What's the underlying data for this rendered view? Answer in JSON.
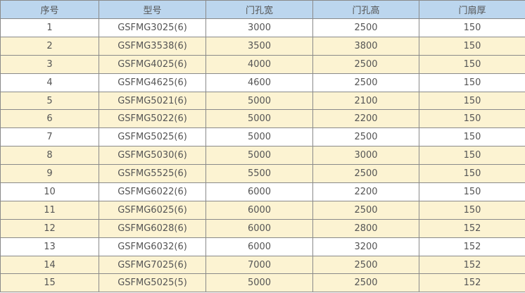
{
  "table": {
    "headers": [
      "序号",
      "型号",
      "门孔宽",
      "门孔高",
      "门扇厚"
    ],
    "colors": {
      "header_bg": "#bcd6ee",
      "highlight_row_bg": "#fcf3d2",
      "plain_row_bg": "#ffffff"
    },
    "rows": [
      {
        "cells": [
          "1",
          "GSFMG3025(6)",
          "3000",
          "2500",
          "150"
        ],
        "highlight": false
      },
      {
        "cells": [
          "2",
          "GSFMG3538(6)",
          "3500",
          "3800",
          "150"
        ],
        "highlight": true
      },
      {
        "cells": [
          "3",
          "GSFMG4025(6)",
          "4000",
          "2500",
          "150"
        ],
        "highlight": true
      },
      {
        "cells": [
          "4",
          "GSFMG4625(6)",
          "4600",
          "2500",
          "150"
        ],
        "highlight": false
      },
      {
        "cells": [
          "5",
          "GSFMG5021(6)",
          "5000",
          "2100",
          "150"
        ],
        "highlight": true
      },
      {
        "cells": [
          "6",
          "GSFMG5022(6)",
          "5000",
          "2200",
          "150"
        ],
        "highlight": true
      },
      {
        "cells": [
          "7",
          "GSFMG5025(6)",
          "5000",
          "2500",
          "150"
        ],
        "highlight": false
      },
      {
        "cells": [
          "8",
          "GSFMG5030(6)",
          "5000",
          "3000",
          "150"
        ],
        "highlight": true
      },
      {
        "cells": [
          "9",
          "GSFMG5525(6)",
          "5500",
          "2500",
          "150"
        ],
        "highlight": true
      },
      {
        "cells": [
          "10",
          "GSFMG6022(6)",
          "6000",
          "2200",
          "150"
        ],
        "highlight": false
      },
      {
        "cells": [
          "11",
          "GSFMG6025(6)",
          "6000",
          "2500",
          "150"
        ],
        "highlight": true
      },
      {
        "cells": [
          "12",
          "GSFMG6028(6)",
          "6000",
          "2800",
          "152"
        ],
        "highlight": true
      },
      {
        "cells": [
          "13",
          "GSFMG6032(6)",
          "6000",
          "3200",
          "152"
        ],
        "highlight": false
      },
      {
        "cells": [
          "14",
          "GSFMG7025(6)",
          "7000",
          "2500",
          "152"
        ],
        "highlight": true
      },
      {
        "cells": [
          "15",
          "GSFMG5025(5)",
          "5000",
          "2500",
          "152"
        ],
        "highlight": true
      }
    ]
  }
}
